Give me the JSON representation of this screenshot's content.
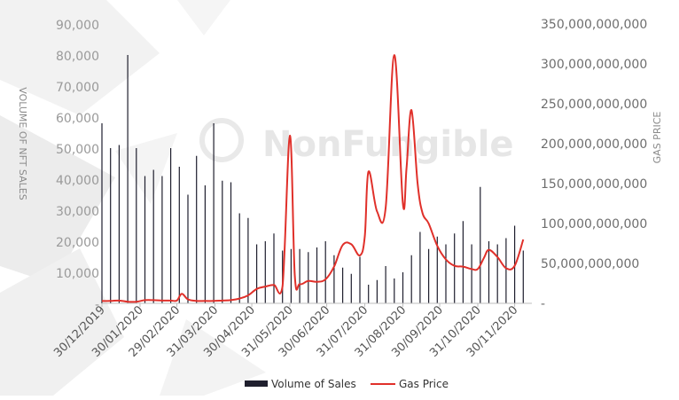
{
  "watermark": "NonFungible",
  "chart_data": {
    "type": "bar",
    "combo": "bar+line",
    "xlabel": "",
    "ylabel_left": "VOLUME OF NFT SALES",
    "ylabel_right": "GAS PRICE",
    "ylim_left": [
      0,
      90000
    ],
    "ylim_right": [
      0,
      350000000000
    ],
    "left_ticks": [
      {
        "value": 0,
        "label": "-"
      },
      {
        "value": 10000,
        "label": "10,000"
      },
      {
        "value": 20000,
        "label": "20,000"
      },
      {
        "value": 30000,
        "label": "30,000"
      },
      {
        "value": 40000,
        "label": "40,000"
      },
      {
        "value": 50000,
        "label": "50,000"
      },
      {
        "value": 60000,
        "label": "60,000"
      },
      {
        "value": 70000,
        "label": "70,000"
      },
      {
        "value": 80000,
        "label": "80,000"
      },
      {
        "value": 90000,
        "label": "90,000"
      }
    ],
    "right_ticks": [
      {
        "value": 0,
        "label": "-"
      },
      {
        "value": 50000000000,
        "label": "50,000,000,000"
      },
      {
        "value": 100000000000,
        "label": "100,000,000,000"
      },
      {
        "value": 150000000000,
        "label": "150,000,000,000"
      },
      {
        "value": 200000000000,
        "label": "200,000,000,000"
      },
      {
        "value": 250000000000,
        "label": "250,000,000,000"
      },
      {
        "value": 300000000000,
        "label": "300,000,000,000"
      },
      {
        "value": 350000000000,
        "label": "350,000,000,000"
      }
    ],
    "x_tick_labels": [
      "30/12/2019",
      "30/01/2020",
      "29/02/2020",
      "31/03/2020",
      "30/04/2020",
      "31/05/2020",
      "30/06/2020",
      "31/07/2020",
      "31/08/2020",
      "30/09/2020",
      "31/10/2020",
      "30/11/2020"
    ],
    "legend": {
      "position": "bottom",
      "items": [
        "Volume  of Sales",
        "Gas Price"
      ]
    },
    "grid": false,
    "series": [
      {
        "name": "Volume  of Sales",
        "kind": "bar",
        "axis": "left",
        "color": "#1f1f2e",
        "x": [
          "30/12/2019",
          "06/01/2020",
          "13/01/2020",
          "20/01/2020",
          "27/01/2020",
          "03/02/2020",
          "10/02/2020",
          "17/02/2020",
          "24/02/2020",
          "02/03/2020",
          "09/03/2020",
          "16/03/2020",
          "23/03/2020",
          "30/03/2020",
          "06/04/2020",
          "13/04/2020",
          "20/04/2020",
          "27/04/2020",
          "04/05/2020",
          "11/05/2020",
          "18/05/2020",
          "25/05/2020",
          "01/06/2020",
          "08/06/2020",
          "15/06/2020",
          "22/06/2020",
          "29/06/2020",
          "06/07/2020",
          "13/07/2020",
          "20/07/2020",
          "27/07/2020",
          "03/08/2020",
          "10/08/2020",
          "17/08/2020",
          "24/08/2020",
          "31/08/2020",
          "07/09/2020",
          "14/09/2020",
          "21/09/2020",
          "28/09/2020",
          "05/10/2020",
          "12/10/2020",
          "19/10/2020",
          "26/10/2020",
          "02/11/2020",
          "09/11/2020",
          "16/11/2020",
          "23/11/2020",
          "30/11/2020",
          "07/12/2020"
        ],
        "values": [
          58000,
          50000,
          51000,
          80000,
          50000,
          41000,
          43000,
          41000,
          50000,
          44000,
          35000,
          47500,
          38000,
          58000,
          39500,
          39000,
          29000,
          27500,
          19000,
          20000,
          22500,
          17000,
          17500,
          17500,
          16500,
          18000,
          20000,
          15500,
          11500,
          9500,
          15000,
          6000,
          7500,
          12000,
          8000,
          10000,
          15500,
          23000,
          17500,
          21500,
          19000,
          22500,
          26500,
          19000,
          37500,
          20000,
          19000,
          21000,
          25000,
          17000
        ]
      },
      {
        "name": "Gas Price",
        "kind": "line",
        "axis": "right",
        "color": "#e0302a",
        "x": [
          "30/12/2019",
          "06/01/2020",
          "13/01/2020",
          "20/01/2020",
          "27/01/2020",
          "03/02/2020",
          "10/02/2020",
          "17/02/2020",
          "24/02/2020",
          "29/02/2020",
          "04/03/2020",
          "09/03/2020",
          "16/03/2020",
          "23/03/2020",
          "30/03/2020",
          "06/04/2020",
          "13/04/2020",
          "20/04/2020",
          "27/04/2020",
          "04/05/2020",
          "11/05/2020",
          "18/05/2020",
          "25/05/2020",
          "31/05/2020",
          "04/06/2020",
          "08/06/2020",
          "15/06/2020",
          "22/06/2020",
          "29/06/2020",
          "06/07/2020",
          "13/07/2020",
          "20/07/2020",
          "27/07/2020",
          "31/07/2020",
          "03/08/2020",
          "10/08/2020",
          "17/08/2020",
          "24/08/2020",
          "31/08/2020",
          "03/09/2020",
          "07/09/2020",
          "12/09/2020",
          "16/09/2020",
          "21/09/2020",
          "28/09/2020",
          "05/10/2020",
          "12/10/2020",
          "19/10/2020",
          "26/10/2020",
          "31/10/2020",
          "05/11/2020",
          "09/11/2020",
          "16/11/2020",
          "23/11/2020",
          "30/11/2020",
          "07/12/2020"
        ],
        "values": [
          3000000000,
          3000000000,
          3500000000,
          2000000000,
          2000000000,
          4000000000,
          4000000000,
          3500000000,
          3500000000,
          3500000000,
          12000000000,
          5000000000,
          3000000000,
          3000000000,
          3000000000,
          3500000000,
          4000000000,
          6000000000,
          10000000000,
          18000000000,
          21000000000,
          23000000000,
          21000000000,
          210000000000,
          35000000000,
          24000000000,
          28000000000,
          27000000000,
          30000000000,
          46000000000,
          73000000000,
          74000000000,
          60000000000,
          84000000000,
          165000000000,
          115000000000,
          120000000000,
          311000000000,
          125000000000,
          170000000000,
          242000000000,
          150000000000,
          113000000000,
          100000000000,
          72000000000,
          55000000000,
          47000000000,
          46000000000,
          43000000000,
          43000000000,
          57000000000,
          67000000000,
          58000000000,
          44000000000,
          47000000000,
          80000000000
        ]
      }
    ]
  }
}
